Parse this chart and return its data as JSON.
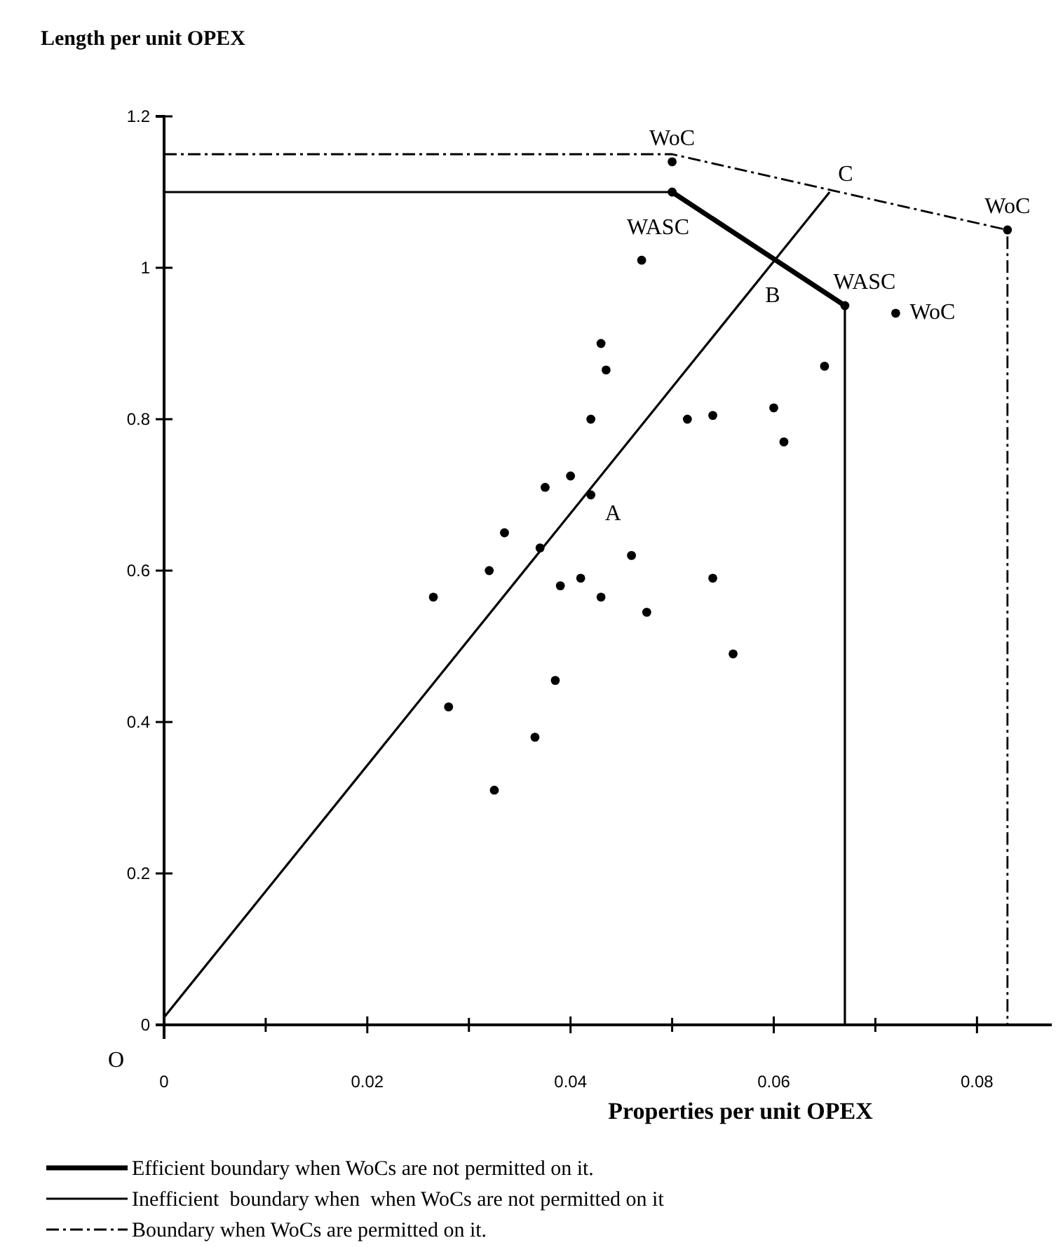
{
  "chart_data": {
    "type": "scatter",
    "xlabel": "Properties per unit OPEX",
    "ylabel": "Length per unit OPEX",
    "xlim": [
      0,
      0.0875
    ],
    "ylim": [
      0,
      1.2
    ],
    "xticks": [
      0,
      {
        "value": 0.01,
        "label": null
      },
      0.02,
      {
        "value": 0.03,
        "label": null
      },
      0.04,
      {
        "value": 0.05,
        "label": null
      },
      0.06,
      {
        "value": 0.07,
        "label": null
      },
      0.08
    ],
    "yticks": [
      0,
      0.2,
      0.4,
      0.6,
      0.8,
      1,
      1.2
    ],
    "grid": false,
    "legend": "bottom",
    "series": [
      {
        "color": "#000000",
        "marker": "circle",
        "x": [
          0.05,
          0.05,
          0.083,
          0.067,
          0.072,
          0.047,
          0.043,
          0.0435,
          0.042,
          0.0515,
          0.054,
          0.06,
          0.061,
          0.065,
          0.0375,
          0.04,
          0.042,
          0.0335,
          0.037,
          0.032,
          0.046,
          0.0265,
          0.039,
          0.041,
          0.043,
          0.054,
          0.0475,
          0.056,
          0.028,
          0.0385,
          0.0365,
          0.0325
        ],
        "values": [
          1.14,
          1.1,
          1.05,
          0.95,
          0.94,
          1.01,
          0.9,
          0.865,
          0.8,
          0.8,
          0.805,
          0.815,
          0.77,
          0.87,
          0.71,
          0.725,
          0.7,
          0.65,
          0.63,
          0.6,
          0.62,
          0.565,
          0.58,
          0.59,
          0.565,
          0.59,
          0.545,
          0.49,
          0.42,
          0.455,
          0.38,
          0.31
        ]
      },
      {
        "type": "line",
        "name": "Efficient boundary when WoCs are not permitted on it.",
        "color": "#000000",
        "line_style": "solid",
        "x": [
          0.05,
          0.067
        ],
        "values": [
          1.1,
          0.95
        ]
      },
      {
        "type": "line",
        "name": "Inefficient  boundary when  when WoCs are not permitted on it",
        "color": "#000000",
        "line_style": "solid",
        "x": [
          0,
          0.05,
          0.06,
          0.067,
          0.067
        ],
        "values": [
          1.1,
          1.1,
          null,
          0.95,
          0
        ]
      },
      {
        "type": "line",
        "name": "Boundary when WoCs are permitted on it.",
        "color": "#000000",
        "line_style": "dashed",
        "x": [
          0,
          0.05,
          0.083,
          0.083
        ],
        "values": [
          1.15,
          1.15,
          1.05,
          0
        ]
      },
      {
        "type": "line",
        "color": "#000000",
        "line_style": "solid",
        "x": [
          0,
          0.0655
        ],
        "values": [
          0.01,
          1.1
        ]
      }
    ],
    "annotations": [
      {
        "text": "WoC",
        "x": 0.05,
        "y": 1.14
      },
      {
        "text": "WASC",
        "x": 0.05,
        "y": 1.1
      },
      {
        "text": "WASC",
        "x": 0.067,
        "y": 0.95
      },
      {
        "text": "WoC",
        "x": 0.072,
        "y": 0.94
      },
      {
        "text": "WoC",
        "x": 0.083,
        "y": 1.05
      },
      {
        "text": "A",
        "x": 0.042,
        "y": 0.7
      },
      {
        "text": "B",
        "x": 0.061,
        "y": 1.01
      },
      {
        "text": "C",
        "x": 0.0655,
        "y": 1.1
      },
      "O"
    ]
  }
}
